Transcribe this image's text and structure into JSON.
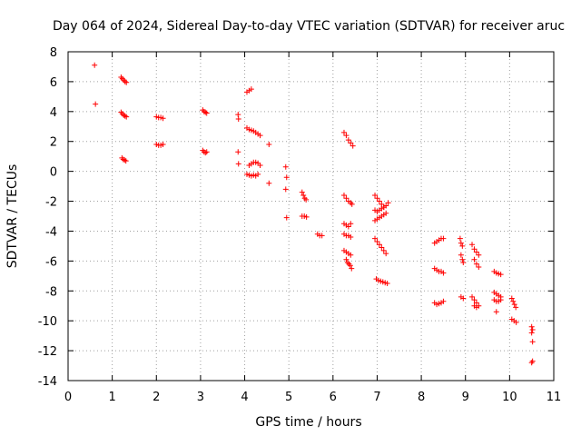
{
  "chart_data": {
    "type": "scatter",
    "title": "Day 064 of 2024, Sidereal Day-to-day VTEC variation (SDTVAR) for receiver aruc",
    "xlabel": "GPS time / hours",
    "ylabel": "SDTVAR / TECUs",
    "xlim": [
      0,
      11
    ],
    "ylim": [
      -14,
      8
    ],
    "xticks": [
      0,
      1,
      2,
      3,
      4,
      5,
      6,
      7,
      8,
      9,
      10,
      11
    ],
    "yticks": [
      -14,
      -12,
      -10,
      -8,
      -6,
      -4,
      -2,
      0,
      2,
      4,
      6,
      8
    ],
    "grid": true,
    "marker": "+",
    "marker_color": "#ff0000",
    "series": [
      {
        "name": "SDTVAR",
        "points": [
          [
            0.6,
            7.1
          ],
          [
            0.62,
            4.5
          ],
          [
            1.2,
            6.3
          ],
          [
            1.23,
            6.2
          ],
          [
            1.26,
            6.1
          ],
          [
            1.29,
            6.0
          ],
          [
            1.32,
            5.95
          ],
          [
            1.2,
            3.95
          ],
          [
            1.23,
            3.85
          ],
          [
            1.26,
            3.75
          ],
          [
            1.29,
            3.7
          ],
          [
            1.32,
            3.65
          ],
          [
            1.22,
            0.9
          ],
          [
            1.25,
            0.8
          ],
          [
            1.28,
            0.75
          ],
          [
            1.31,
            0.7
          ],
          [
            2.0,
            3.65
          ],
          [
            2.05,
            3.6
          ],
          [
            2.1,
            3.6
          ],
          [
            2.15,
            3.55
          ],
          [
            2.0,
            1.8
          ],
          [
            2.05,
            1.75
          ],
          [
            2.1,
            1.75
          ],
          [
            2.15,
            1.8
          ],
          [
            3.05,
            4.1
          ],
          [
            3.08,
            4.0
          ],
          [
            3.11,
            3.95
          ],
          [
            3.14,
            3.9
          ],
          [
            3.05,
            1.4
          ],
          [
            3.08,
            1.3
          ],
          [
            3.11,
            1.25
          ],
          [
            3.14,
            1.3
          ],
          [
            3.85,
            3.8
          ],
          [
            3.86,
            3.5
          ],
          [
            3.85,
            1.3
          ],
          [
            3.86,
            0.5
          ],
          [
            4.05,
            5.3
          ],
          [
            4.1,
            5.4
          ],
          [
            4.15,
            5.5
          ],
          [
            4.05,
            2.9
          ],
          [
            4.1,
            2.8
          ],
          [
            4.15,
            2.75
          ],
          [
            4.2,
            2.7
          ],
          [
            4.25,
            2.6
          ],
          [
            4.3,
            2.5
          ],
          [
            4.35,
            2.4
          ],
          [
            4.1,
            0.4
          ],
          [
            4.15,
            0.5
          ],
          [
            4.2,
            0.6
          ],
          [
            4.25,
            0.6
          ],
          [
            4.3,
            0.55
          ],
          [
            4.35,
            0.4
          ],
          [
            4.05,
            -0.2
          ],
          [
            4.1,
            -0.25
          ],
          [
            4.15,
            -0.3
          ],
          [
            4.2,
            -0.25
          ],
          [
            4.25,
            -0.3
          ],
          [
            4.3,
            -0.2
          ],
          [
            4.55,
            1.8
          ],
          [
            4.55,
            -0.8
          ],
          [
            4.93,
            0.3
          ],
          [
            4.95,
            -0.4
          ],
          [
            4.93,
            -1.2
          ],
          [
            4.95,
            -3.1
          ],
          [
            5.3,
            -1.4
          ],
          [
            5.33,
            -1.6
          ],
          [
            5.36,
            -1.8
          ],
          [
            5.39,
            -1.9
          ],
          [
            5.3,
            -3.0
          ],
          [
            5.35,
            -3.0
          ],
          [
            5.4,
            -3.05
          ],
          [
            5.65,
            -4.2
          ],
          [
            5.7,
            -4.3
          ],
          [
            5.75,
            -4.3
          ],
          [
            6.25,
            2.6
          ],
          [
            6.3,
            2.4
          ],
          [
            6.35,
            2.1
          ],
          [
            6.4,
            1.9
          ],
          [
            6.45,
            1.7
          ],
          [
            6.25,
            -1.6
          ],
          [
            6.3,
            -1.8
          ],
          [
            6.35,
            -2.0
          ],
          [
            6.4,
            -2.1
          ],
          [
            6.43,
            -2.2
          ],
          [
            6.25,
            -3.5
          ],
          [
            6.3,
            -3.6
          ],
          [
            6.35,
            -3.7
          ],
          [
            6.4,
            -3.5
          ],
          [
            6.25,
            -4.2
          ],
          [
            6.3,
            -4.3
          ],
          [
            6.35,
            -4.3
          ],
          [
            6.4,
            -4.4
          ],
          [
            6.25,
            -5.3
          ],
          [
            6.3,
            -5.4
          ],
          [
            6.35,
            -5.5
          ],
          [
            6.4,
            -5.6
          ],
          [
            6.3,
            -5.9
          ],
          [
            6.33,
            -6.1
          ],
          [
            6.36,
            -6.2
          ],
          [
            6.39,
            -6.3
          ],
          [
            6.42,
            -6.5
          ],
          [
            6.95,
            -1.6
          ],
          [
            7.0,
            -1.8
          ],
          [
            7.05,
            -2.0
          ],
          [
            7.1,
            -2.2
          ],
          [
            7.15,
            -2.4
          ],
          [
            7.2,
            -2.3
          ],
          [
            7.25,
            -2.1
          ],
          [
            6.95,
            -2.6
          ],
          [
            7.0,
            -2.7
          ],
          [
            7.05,
            -2.6
          ],
          [
            7.1,
            -2.5
          ],
          [
            7.15,
            -2.4
          ],
          [
            6.95,
            -3.3
          ],
          [
            7.0,
            -3.2
          ],
          [
            7.05,
            -3.1
          ],
          [
            7.1,
            -3.0
          ],
          [
            7.15,
            -2.9
          ],
          [
            7.2,
            -2.8
          ],
          [
            6.95,
            -4.5
          ],
          [
            7.0,
            -4.7
          ],
          [
            7.05,
            -4.9
          ],
          [
            7.1,
            -5.1
          ],
          [
            7.15,
            -5.3
          ],
          [
            7.2,
            -5.5
          ],
          [
            6.98,
            -7.2
          ],
          [
            7.03,
            -7.3
          ],
          [
            7.08,
            -7.35
          ],
          [
            7.13,
            -7.4
          ],
          [
            7.18,
            -7.45
          ],
          [
            7.23,
            -7.5
          ],
          [
            8.3,
            -4.8
          ],
          [
            8.35,
            -4.7
          ],
          [
            8.4,
            -4.6
          ],
          [
            8.45,
            -4.5
          ],
          [
            8.5,
            -4.5
          ],
          [
            8.3,
            -6.5
          ],
          [
            8.35,
            -6.6
          ],
          [
            8.4,
            -6.7
          ],
          [
            8.45,
            -6.7
          ],
          [
            8.5,
            -6.8
          ],
          [
            8.3,
            -8.8
          ],
          [
            8.35,
            -8.9
          ],
          [
            8.4,
            -8.85
          ],
          [
            8.45,
            -8.8
          ],
          [
            8.5,
            -8.7
          ],
          [
            8.88,
            -4.5
          ],
          [
            8.9,
            -4.8
          ],
          [
            8.93,
            -5.0
          ],
          [
            8.9,
            -5.6
          ],
          [
            8.93,
            -5.9
          ],
          [
            8.95,
            -6.1
          ],
          [
            8.9,
            -8.4
          ],
          [
            8.95,
            -8.5
          ],
          [
            9.15,
            -4.9
          ],
          [
            9.2,
            -5.2
          ],
          [
            9.25,
            -5.4
          ],
          [
            9.3,
            -5.6
          ],
          [
            9.2,
            -5.9
          ],
          [
            9.25,
            -6.2
          ],
          [
            9.3,
            -6.4
          ],
          [
            9.15,
            -8.4
          ],
          [
            9.2,
            -8.6
          ],
          [
            9.25,
            -8.8
          ],
          [
            9.2,
            -9.0
          ],
          [
            9.25,
            -9.1
          ],
          [
            9.3,
            -9.0
          ],
          [
            9.65,
            -6.7
          ],
          [
            9.7,
            -6.8
          ],
          [
            9.75,
            -6.85
          ],
          [
            9.8,
            -6.9
          ],
          [
            9.65,
            -8.1
          ],
          [
            9.7,
            -8.2
          ],
          [
            9.75,
            -8.3
          ],
          [
            9.8,
            -8.4
          ],
          [
            9.65,
            -8.6
          ],
          [
            9.7,
            -8.7
          ],
          [
            9.75,
            -8.7
          ],
          [
            9.8,
            -8.6
          ],
          [
            9.7,
            -9.4
          ],
          [
            10.05,
            -8.5
          ],
          [
            10.08,
            -8.7
          ],
          [
            10.11,
            -8.9
          ],
          [
            10.14,
            -9.1
          ],
          [
            10.05,
            -9.9
          ],
          [
            10.1,
            -10.0
          ],
          [
            10.15,
            -10.1
          ],
          [
            10.5,
            -10.4
          ],
          [
            10.52,
            -10.6
          ],
          [
            10.5,
            -10.8
          ],
          [
            10.52,
            -11.4
          ],
          [
            10.52,
            -12.7
          ],
          [
            10.5,
            -12.8
          ]
        ]
      }
    ]
  }
}
